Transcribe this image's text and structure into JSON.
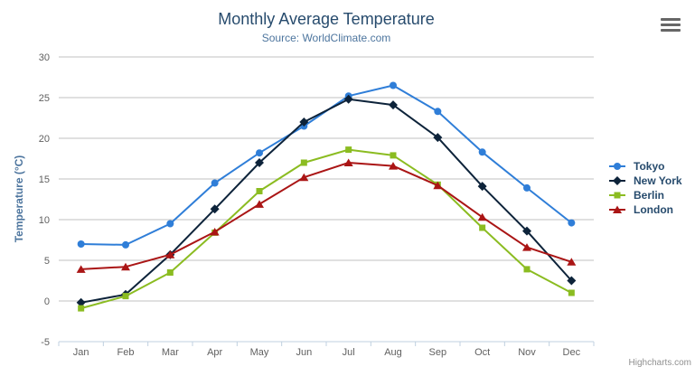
{
  "credits": "Highcharts.com",
  "export_menu": {
    "icon": "hamburger-menu-icon"
  },
  "chart_data": {
    "type": "line",
    "title": "Monthly Average Temperature",
    "subtitle": "Source: WorldClimate.com",
    "xlabel": "",
    "ylabel": "Temperature (°C)",
    "ylim": [
      -5,
      30
    ],
    "ytick_interval": 5,
    "grid": true,
    "legend_position": "right",
    "categories": [
      "Jan",
      "Feb",
      "Mar",
      "Apr",
      "May",
      "Jun",
      "Jul",
      "Aug",
      "Sep",
      "Oct",
      "Nov",
      "Dec"
    ],
    "series": [
      {
        "name": "Tokyo",
        "color": "#2f7ed8",
        "marker": "circle",
        "values": [
          7.0,
          6.9,
          9.5,
          14.5,
          18.2,
          21.5,
          25.2,
          26.5,
          23.3,
          18.3,
          13.9,
          9.6
        ]
      },
      {
        "name": "New York",
        "color": "#0d233a",
        "marker": "diamond",
        "values": [
          -0.2,
          0.8,
          5.7,
          11.3,
          17.0,
          22.0,
          24.8,
          24.1,
          20.1,
          14.1,
          8.6,
          2.5
        ]
      },
      {
        "name": "Berlin",
        "color": "#8bbc21",
        "marker": "square",
        "values": [
          -0.9,
          0.6,
          3.5,
          8.4,
          13.5,
          17.0,
          18.6,
          17.9,
          14.3,
          9.0,
          3.9,
          1.0
        ]
      },
      {
        "name": "London",
        "color": "#aa1515",
        "marker": "triangle",
        "values": [
          3.9,
          4.2,
          5.7,
          8.5,
          11.9,
          15.2,
          17.0,
          16.6,
          14.2,
          10.3,
          6.6,
          4.8
        ]
      }
    ],
    "axis_colors": {
      "grid_line": "#c0c0c0",
      "axis_line": "#c0d0e0",
      "tick_label": "#606060",
      "axis_title": "#4d759e"
    }
  }
}
